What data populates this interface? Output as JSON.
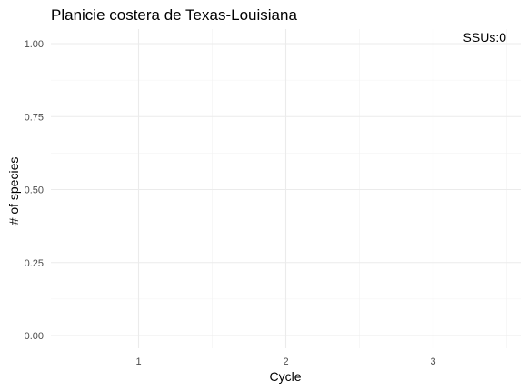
{
  "chart_data": {
    "type": "scatter",
    "title": "Planicie costera de Texas-Louisiana",
    "xlabel": "Cycle",
    "ylabel": "# of species",
    "x_ticks": [
      1,
      2,
      3
    ],
    "x_tick_labels": [
      "1",
      "2",
      "3"
    ],
    "xlim": [
      0.5,
      3.5
    ],
    "y_ticks": [
      0,
      0.25,
      0.5,
      0.75,
      1
    ],
    "y_tick_labels": [
      "0.00",
      "0.25",
      "0.50",
      "0.75",
      "1.00"
    ],
    "ylim": [
      0,
      1
    ],
    "grid": true,
    "legend": "none",
    "annotation": "SSUs:0",
    "series": []
  },
  "colors": {
    "grid_major": "#ebebeb",
    "grid_minor": "#f2f2f2",
    "tick_text": "#4d4d4d",
    "text": "#000000"
  }
}
